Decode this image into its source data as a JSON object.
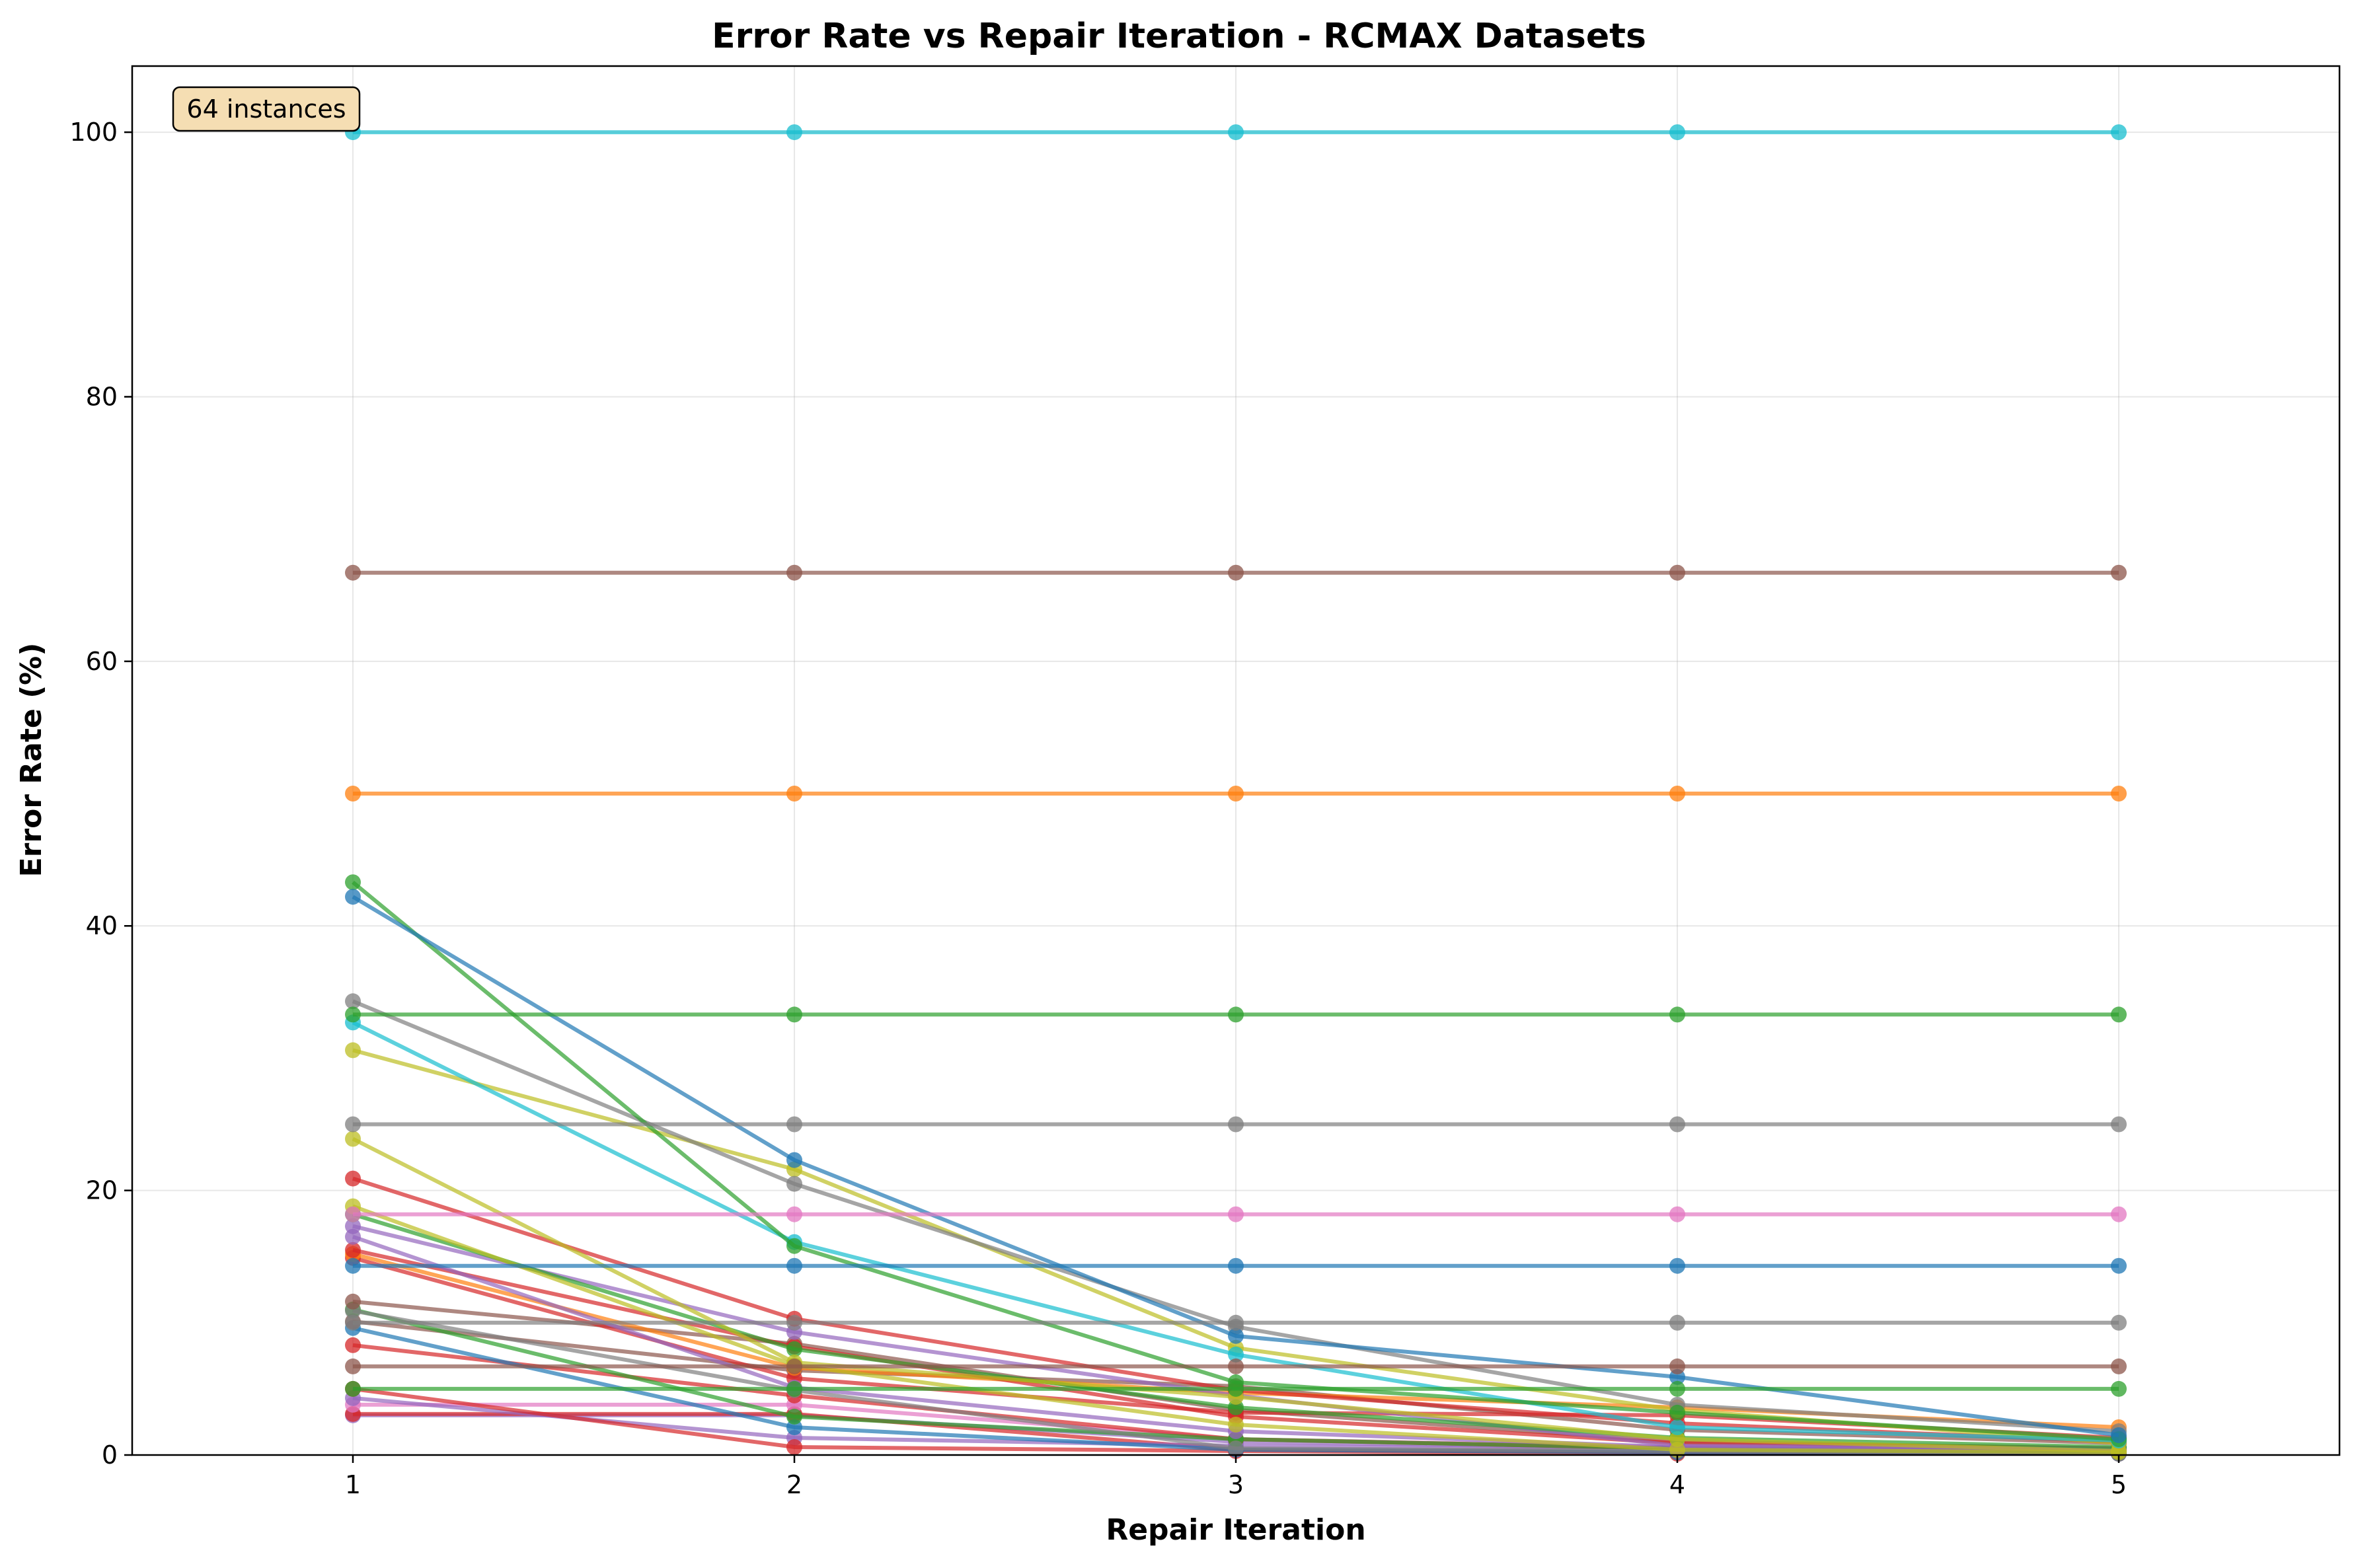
{
  "chart_data": {
    "type": "line",
    "title": "Error Rate vs Repair Iteration - RCMAX Datasets",
    "xlabel": "Repair Iteration",
    "ylabel": "Error Rate (%)",
    "xlim": [
      0.5,
      5.5
    ],
    "ylim": [
      0,
      105
    ],
    "x": [
      1,
      2,
      3,
      4,
      5
    ],
    "x_ticks": [
      "1",
      "2",
      "3",
      "4",
      "5"
    ],
    "y_ticks": [
      "0",
      "20",
      "40",
      "60",
      "80",
      "100"
    ],
    "grid": true,
    "annotation": "64 instances",
    "colors": [
      "#1f77b4",
      "#ff7f0e",
      "#2ca02c",
      "#d62728",
      "#9467bd",
      "#8c564b",
      "#e377c2",
      "#7f7f7f",
      "#bcbd22",
      "#17becf"
    ],
    "series": [
      {
        "color": "#17becf",
        "values": [
          100,
          100,
          100,
          100,
          100
        ]
      },
      {
        "color": "#8c564b",
        "values": [
          66.7,
          66.7,
          66.7,
          66.7,
          66.7
        ]
      },
      {
        "color": "#ff7f0e",
        "values": [
          50,
          50,
          50,
          50,
          50
        ]
      },
      {
        "color": "#2ca02c",
        "values": [
          33.3,
          33.3,
          33.3,
          33.3,
          33.3
        ]
      },
      {
        "color": "#7f7f7f",
        "values": [
          25,
          25,
          25,
          25,
          25
        ]
      },
      {
        "color": "#e377c2",
        "values": [
          18.2,
          18.2,
          18.2,
          18.2,
          18.2
        ]
      },
      {
        "color": "#1f77b4",
        "values": [
          14.3,
          14.3,
          14.3,
          14.3,
          14.3
        ]
      },
      {
        "color": "#7f7f7f",
        "values": [
          10,
          10,
          10,
          10,
          10
        ]
      },
      {
        "color": "#8c564b",
        "values": [
          6.7,
          6.7,
          6.7,
          6.7,
          6.7
        ]
      },
      {
        "color": "#2ca02c",
        "values": [
          5,
          5,
          5,
          5,
          5
        ]
      },
      {
        "color": "#1f77b4",
        "values": [
          42.2,
          22.3,
          9.0,
          5.9,
          1.5
        ]
      },
      {
        "color": "#2ca02c",
        "values": [
          43.3,
          15.8,
          5.5,
          3.2,
          1.2
        ]
      },
      {
        "color": "#7f7f7f",
        "values": [
          34.3,
          20.5,
          9.7,
          3.8,
          1.8
        ]
      },
      {
        "color": "#17becf",
        "values": [
          32.7,
          16.1,
          7.6,
          2.1,
          1.1
        ]
      },
      {
        "color": "#bcbd22",
        "values": [
          30.6,
          21.6,
          8.1,
          3.4,
          0.9
        ]
      },
      {
        "color": "#bcbd22",
        "values": [
          23.9,
          7.0,
          4.4,
          1.2,
          0.3
        ]
      },
      {
        "color": "#d62728",
        "values": [
          20.9,
          10.3,
          4.9,
          2.4,
          1.0
        ]
      },
      {
        "color": "#bcbd22",
        "values": [
          18.8,
          6.8,
          2.3,
          0.4,
          0.2
        ]
      },
      {
        "color": "#2ca02c",
        "values": [
          18.2,
          8.0,
          3.6,
          1.3,
          0.6
        ]
      },
      {
        "color": "#9467bd",
        "values": [
          17.3,
          9.3,
          4.5,
          0.7,
          0.5
        ]
      },
      {
        "color": "#9467bd",
        "values": [
          16.5,
          5.1,
          1.8,
          0.6,
          0.4
        ]
      },
      {
        "color": "#d62728",
        "values": [
          15.5,
          8.2,
          2.9,
          0.9,
          0.5
        ]
      },
      {
        "color": "#ff7f0e",
        "values": [
          15.2,
          6.6,
          4.7,
          3.6,
          2.1
        ]
      },
      {
        "color": "#d62728",
        "values": [
          14.9,
          5.8,
          3.2,
          3.0,
          1.3
        ]
      },
      {
        "color": "#8c564b",
        "values": [
          11.6,
          8.4,
          3.4,
          1.0,
          0.5
        ]
      },
      {
        "color": "#7f7f7f",
        "values": [
          10.9,
          4.9,
          0.5,
          0.3,
          0.1
        ]
      },
      {
        "color": "#2ca02c",
        "values": [
          11.0,
          2.9,
          1.2,
          0.5,
          0.3
        ]
      },
      {
        "color": "#8c564b",
        "values": [
          10.1,
          6.4,
          5.2,
          1.9,
          0.9
        ]
      },
      {
        "color": "#1f77b4",
        "values": [
          9.6,
          2.1,
          0.4,
          0.2,
          0.1
        ]
      },
      {
        "color": "#d62728",
        "values": [
          8.3,
          4.5,
          1.2,
          0.5,
          0.3
        ]
      },
      {
        "color": "#d62728",
        "values": [
          5.0,
          0.6,
          0.3,
          0.1,
          0.1
        ]
      },
      {
        "color": "#9467bd",
        "values": [
          4.3,
          1.3,
          0.7,
          0.4,
          0.2
        ]
      },
      {
        "color": "#e377c2",
        "values": [
          3.8,
          3.8,
          1.2,
          0.6,
          0.3
        ]
      },
      {
        "color": "#d62728",
        "values": [
          3.1,
          3.1,
          0.4,
          0.2,
          0.1
        ]
      },
      {
        "color": "#9467bd",
        "values": [
          3.0,
          3.0,
          1.0,
          0.5,
          0.2
        ]
      }
    ]
  }
}
